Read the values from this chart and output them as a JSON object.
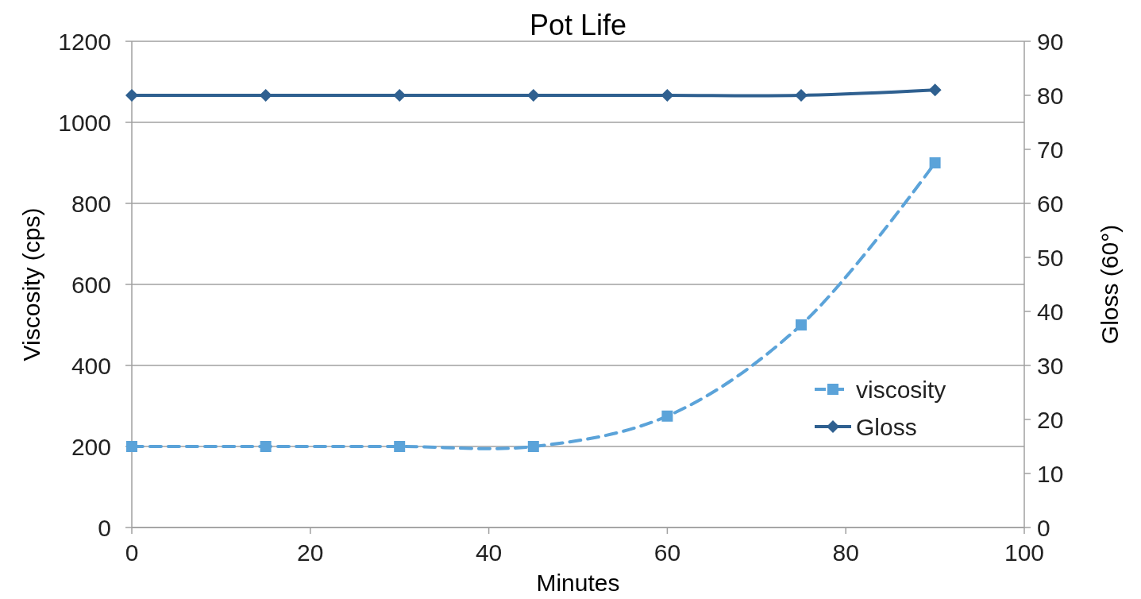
{
  "chart_data": {
    "type": "line",
    "title": "Pot Life",
    "xlabel": "Minutes",
    "ylabel": "Viscosity (cps)",
    "y2label": "Gloss (60°)",
    "xlim": [
      0,
      100
    ],
    "xticks": [
      0,
      20,
      40,
      60,
      80,
      100
    ],
    "ylim": [
      0,
      1200
    ],
    "yticks": [
      0,
      200,
      400,
      600,
      800,
      1000,
      1200
    ],
    "y2lim": [
      0,
      90
    ],
    "y2ticks": [
      0,
      10,
      20,
      30,
      40,
      50,
      60,
      70,
      80,
      90
    ],
    "grid": "y",
    "legend": "bottom right",
    "series": [
      {
        "name": "viscosity",
        "color": "#5ba3d9",
        "x": [
          0,
          15,
          30,
          45,
          60,
          75,
          90
        ],
        "values": [
          200,
          200,
          200,
          200,
          275,
          500,
          900
        ],
        "marker": "square",
        "line_style": "dashed"
      },
      {
        "name": "Gloss",
        "color": "#2f6090",
        "axis": "y2",
        "x": [
          0,
          15,
          30,
          45,
          60,
          75,
          90
        ],
        "values": [
          80,
          80,
          80,
          80,
          80,
          80,
          81
        ],
        "marker": "diamond",
        "line_style": "solid"
      }
    ]
  }
}
